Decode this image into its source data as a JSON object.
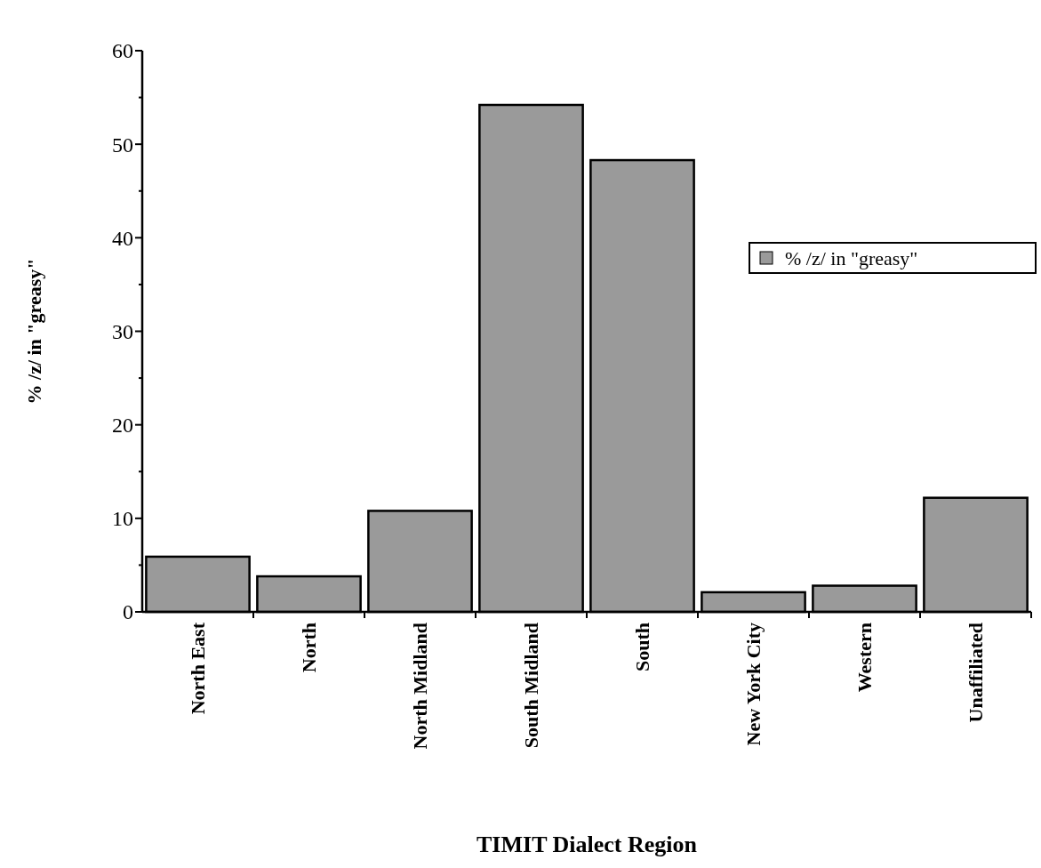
{
  "chart_data": {
    "type": "bar",
    "xlabel": "TIMIT Dialect Region",
    "ylabel": "% /z/ in \"greasy\"",
    "categories": [
      "North East",
      "North",
      "North Midland",
      "South Midland",
      "South",
      "New York City",
      "Western",
      "Unaffiliated"
    ],
    "series": [
      {
        "name": "% /z/ in \"greasy\"",
        "color": "#9a9a9a",
        "values": [
          5.9,
          3.8,
          10.8,
          54.2,
          48.3,
          2.1,
          2.8,
          12.2
        ]
      }
    ],
    "ylim": [
      0,
      60
    ],
    "yticks": [
      0,
      {
        "value": 5,
        "label": null
      },
      10,
      {
        "value": 15,
        "label": null
      },
      20,
      {
        "value": 25,
        "label": null
      },
      30,
      {
        "value": 35,
        "label": null
      },
      40,
      {
        "value": 45,
        "label": null
      },
      50,
      {
        "value": 55,
        "label": null
      },
      60
    ],
    "grid": false,
    "legend": "right"
  }
}
